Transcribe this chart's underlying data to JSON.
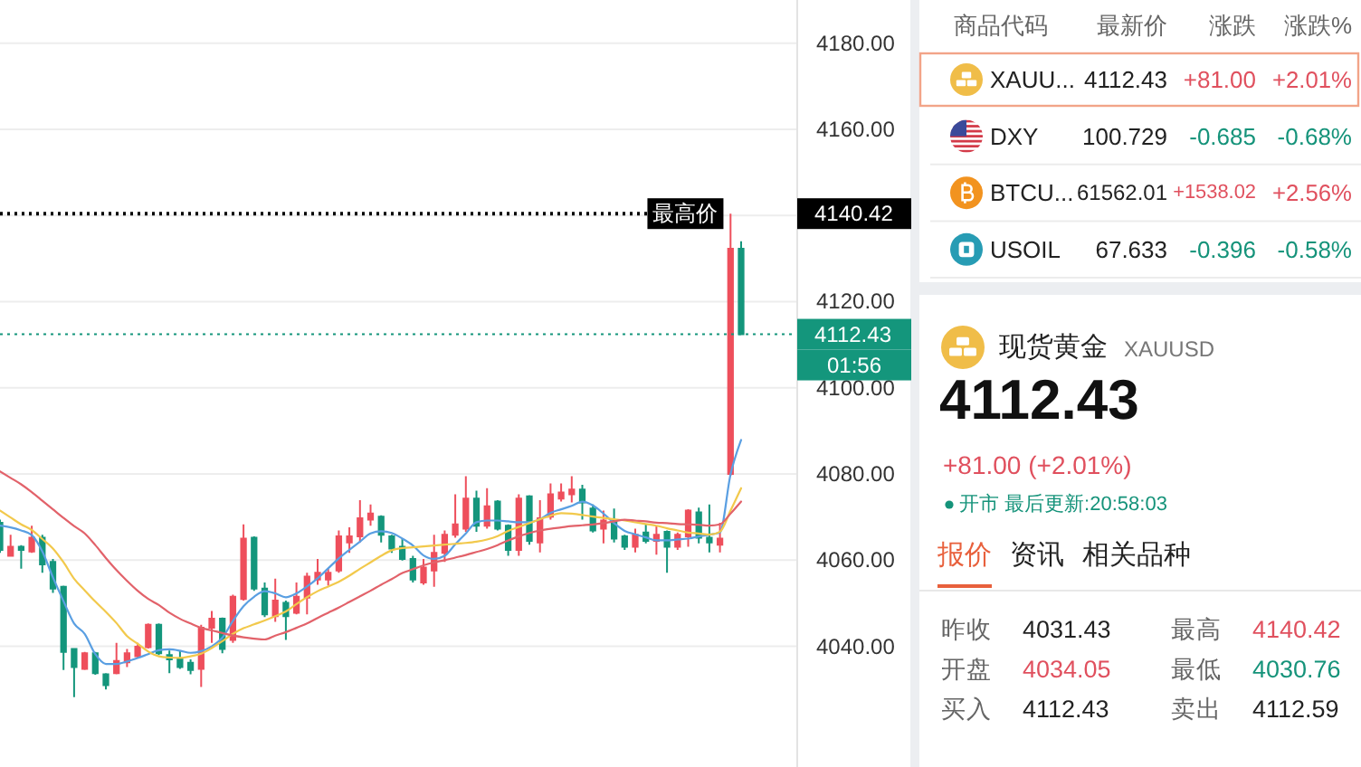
{
  "chart_data": [
    {
      "type": "candlestick",
      "categories": [
        null,
        null,
        null,
        null,
        null,
        null,
        null,
        null,
        null,
        null,
        null,
        null,
        null,
        null,
        null,
        null,
        null,
        null,
        null,
        null,
        null,
        null,
        null,
        null,
        null,
        null,
        null,
        null,
        null,
        null,
        null,
        null,
        null,
        null,
        null,
        null,
        null,
        null,
        null,
        null,
        null,
        null,
        null,
        null,
        null,
        null,
        null,
        null,
        null,
        null,
        null,
        null,
        null,
        null,
        null,
        null,
        null,
        null,
        null,
        null,
        null,
        null,
        null,
        null,
        null,
        null,
        null,
        null,
        null,
        null,
        null
      ],
      "ohlc": [
        [
          4068.7,
          4069.4,
          4061.7,
          4062.4
        ],
        [
          4061.0,
          4065.9,
          4061.0,
          4063.1
        ],
        [
          4063.1,
          4063.5,
          4058.0,
          4062.4
        ],
        [
          4062.0,
          4068.0,
          4061.7,
          4065.2
        ],
        [
          4065.2,
          4065.9,
          4057.1,
          4059.0
        ],
        [
          4059.6,
          4060.3,
          4052.4,
          4053.4
        ],
        [
          4053.8,
          4054.1,
          4034.5,
          4038.7
        ],
        [
          4039.4,
          4039.4,
          4028.2,
          4035.2
        ],
        [
          4034.8,
          4038.7,
          4034.5,
          4038.4
        ],
        [
          4038.4,
          4038.7,
          4033.4,
          4033.8
        ],
        [
          4033.5,
          4033.8,
          4030.0,
          4031.0
        ],
        [
          4033.8,
          4040.8,
          4033.5,
          4036.6
        ],
        [
          4036.3,
          4039.4,
          4035.2,
          4038.4
        ],
        [
          4037.7,
          4040.8,
          4037.3,
          4039.9
        ],
        [
          4039.8,
          4045.3,
          4039.5,
          4045.0
        ],
        [
          4045.0,
          4045.3,
          4038.0,
          4038.4
        ],
        [
          4038.0,
          4039.0,
          4033.8,
          4037.0
        ],
        [
          4037.0,
          4039.0,
          4034.8,
          4035.2
        ],
        [
          4036.2,
          4037.0,
          4033.5,
          4034.5
        ],
        [
          4034.8,
          4045.0,
          4030.6,
          4044.3
        ],
        [
          4044.3,
          4048.2,
          4040.8,
          4046.4
        ],
        [
          4046.4,
          4046.7,
          4038.4,
          4039.4
        ],
        [
          4041.5,
          4052.0,
          4040.8,
          4051.5
        ],
        [
          4051.0,
          4068.3,
          4050.6,
          4065.0
        ],
        [
          4065.2,
          4065.5,
          4052.9,
          4053.4
        ],
        [
          4053.4,
          4054.8,
          4046.8,
          4047.4
        ],
        [
          4047.0,
          4055.7,
          4045.7,
          4050.6
        ],
        [
          4050.1,
          4050.6,
          4041.5,
          4047.0
        ],
        [
          4047.8,
          4054.8,
          4047.4,
          4051.5
        ],
        [
          4051.3,
          4057.1,
          4047.4,
          4056.2
        ],
        [
          4055.5,
          4060.3,
          4054.3,
          4057.1
        ],
        [
          4055.5,
          4058.0,
          4054.1,
          4057.1
        ],
        [
          4057.6,
          4066.9,
          4057.1,
          4065.5
        ],
        [
          4064.1,
          4067.6,
          4061.7,
          4065.5
        ],
        [
          4065.5,
          4073.9,
          4064.1,
          4069.7
        ],
        [
          4069.4,
          4072.9,
          4068.0,
          4070.8
        ],
        [
          4070.1,
          4070.4,
          4064.1,
          4065.9
        ],
        [
          4065.5,
          4065.9,
          4061.7,
          4062.7
        ],
        [
          4063.1,
          4065.0,
          4059.9,
          4060.3
        ],
        [
          4060.3,
          4061.0,
          4054.8,
          4055.5
        ],
        [
          4054.8,
          4060.3,
          4054.3,
          4058.3
        ],
        [
          4057.6,
          4065.9,
          4053.8,
          4061.7
        ],
        [
          4061.7,
          4066.9,
          4059.6,
          4065.9
        ],
        [
          4065.9,
          4075.3,
          4065.2,
          4068.3
        ],
        [
          4067.3,
          4079.5,
          4066.6,
          4074.3
        ],
        [
          4074.3,
          4076.1,
          4066.6,
          4068.0
        ],
        [
          4068.0,
          4076.7,
          4067.3,
          4072.5
        ],
        [
          4073.6,
          4073.9,
          4066.9,
          4067.3
        ],
        [
          4068.0,
          4068.3,
          4061.0,
          4062.4
        ],
        [
          4062.4,
          4075.3,
          4061.0,
          4074.3
        ],
        [
          4074.8,
          4075.1,
          4063.6,
          4064.5
        ],
        [
          4064.1,
          4073.9,
          4061.8,
          4069.7
        ],
        [
          4070.1,
          4077.8,
          4069.4,
          4075.3
        ],
        [
          4074.3,
          4077.8,
          4073.6,
          4075.7
        ],
        [
          4075.3,
          4079.5,
          4073.4,
          4076.4
        ],
        [
          4076.4,
          4077.5,
          4069.4,
          4073.4
        ],
        [
          4072.0,
          4072.9,
          4066.4,
          4066.9
        ],
        [
          4067.3,
          4071.5,
          4063.9,
          4069.2
        ],
        [
          4069.2,
          4072.0,
          4064.1,
          4065.0
        ],
        [
          4065.5,
          4065.9,
          4062.4,
          4063.1
        ],
        [
          4063.1,
          4067.3,
          4061.8,
          4065.9
        ],
        [
          4066.4,
          4068.3,
          4063.9,
          4064.5
        ],
        [
          4064.5,
          4068.0,
          4061.3,
          4065.9
        ],
        [
          4066.6,
          4066.9,
          4057.1,
          4063.1
        ],
        [
          4063.1,
          4066.4,
          4062.4,
          4065.9
        ],
        [
          4065.5,
          4071.8,
          4063.1,
          4071.5
        ],
        [
          4071.1,
          4072.2,
          4063.9,
          4065.2
        ],
        [
          4065.2,
          4072.9,
          4061.8,
          4064.1
        ],
        [
          4063.6,
          4068.7,
          4061.8,
          4065.0
        ],
        [
          4080.0,
          4140.42,
          4079.6,
          4132.3
        ],
        [
          4132.3,
          4134.0,
          4112.43,
          4112.43
        ]
      ],
      "series": [
        {
          "type": "line",
          "color": "#5a9fe2",
          "values": [
            4068.0,
            4067.6,
            4066.9,
            4065.8,
            4062.0,
            4056.0,
            4050.5,
            4045.3,
            4042.9,
            4038.2,
            4035.9,
            4035.9,
            4036.5,
            4037.3,
            4038.2,
            4039.1,
            4039.3,
            4039.0,
            4038.5,
            4038.9,
            4040.0,
            4042.0,
            4045.9,
            4049.3,
            4051.5,
            4052.8,
            4052.3,
            4051.4,
            4052.3,
            4053.9,
            4055.8,
            4058.1,
            4060.4,
            4062.4,
            4064.3,
            4066.2,
            4066.7,
            4066.3,
            4065.0,
            4063.4,
            4061.1,
            4060.3,
            4061.0,
            4063.7,
            4066.2,
            4068.8,
            4069.2,
            4069.2,
            4069.0,
            4068.8,
            4068.8,
            4069.5,
            4071.0,
            4071.8,
            4072.6,
            4073.6,
            4072.7,
            4070.8,
            4068.6,
            4066.8,
            4066.0,
            4065.3,
            4064.6,
            4064.6,
            4064.8,
            4065.0,
            4065.5,
            4065.9,
            4066.4,
            4079.9,
            4087.9
          ]
        },
        {
          "type": "line",
          "color": "#f2c94c",
          "values": [
            4071.5,
            4069.9,
            4068.3,
            4067.0,
            4064.9,
            4062.7,
            4059.5,
            4055.7,
            4053.0,
            4050.4,
            4048.0,
            4045.4,
            4042.4,
            4040.6,
            4038.8,
            4037.7,
            4037.4,
            4037.3,
            4037.7,
            4038.3,
            4039.6,
            4041.2,
            4042.9,
            4044.2,
            4045.1,
            4046.0,
            4047.0,
            4048.1,
            4049.8,
            4051.4,
            4052.8,
            4053.9,
            4055.0,
            4056.4,
            4058.0,
            4059.5,
            4061.0,
            4062.3,
            4062.8,
            4063.0,
            4063.2,
            4063.4,
            4063.6,
            4063.8,
            4064.0,
            4064.3,
            4064.8,
            4065.6,
            4066.8,
            4067.7,
            4068.6,
            4069.5,
            4070.3,
            4070.9,
            4070.8,
            4070.5,
            4070.1,
            4069.8,
            4069.5,
            4069.2,
            4068.8,
            4068.4,
            4068.0,
            4067.4,
            4066.9,
            4066.4,
            4066.2,
            4065.9,
            4066.6,
            4071.5,
            4076.7
          ]
        },
        {
          "type": "line",
          "color": "#e2626a",
          "values": [
            4080.6,
            4079.1,
            4077.6,
            4075.8,
            4073.8,
            4071.8,
            4069.8,
            4067.9,
            4066.2,
            4063.5,
            4060.5,
            4057.7,
            4055.2,
            4052.9,
            4051.0,
            4049.6,
            4047.8,
            4046.4,
            4045.3,
            4044.3,
            4043.7,
            4043.1,
            4042.5,
            4042.1,
            4041.8,
            4041.6,
            4042.5,
            4043.3,
            4044.3,
            4045.3,
            4046.6,
            4047.8,
            4049.0,
            4050.3,
            4051.6,
            4052.9,
            4054.3,
            4055.6,
            4057.0,
            4057.9,
            4058.8,
            4059.5,
            4060.0,
            4060.6,
            4061.2,
            4061.9,
            4062.6,
            4063.5,
            4064.6,
            4065.5,
            4066.3,
            4066.9,
            4067.3,
            4067.6,
            4067.9,
            4068.1,
            4068.3,
            4068.6,
            4069.0,
            4069.4,
            4069.2,
            4069.0,
            4068.7,
            4068.6,
            4068.4,
            4068.3,
            4068.2,
            4068.0,
            4068.3,
            4070.8,
            4073.6
          ]
        }
      ],
      "ylim": [
        4012,
        4190
      ],
      "yticks": [
        {
          "value": 4040,
          "label": "4040.00"
        },
        {
          "value": 4060,
          "label": "4060.00"
        },
        {
          "value": 4080,
          "label": "4080.00"
        },
        {
          "value": 4100,
          "label": "4100.00"
        },
        {
          "value": 4120,
          "label": "4120.00"
        },
        {
          "value": 4140,
          "label": null
        },
        {
          "value": 4160,
          "label": "4160.00"
        },
        {
          "value": 4180,
          "label": "4180.00"
        }
      ],
      "grid": "y",
      "ref_lines": [
        {
          "axis": "y",
          "value": 4140.42,
          "label": "最高价",
          "color": "#000000",
          "line_style": "dotted"
        },
        {
          "axis": "y",
          "value": 4112.43,
          "color": "#14967c",
          "line_style": "dotted"
        }
      ],
      "annotations": [
        "01:56"
      ]
    },
    {
      "type": "other",
      "annotations": [
        "商品代码",
        "最新价",
        "涨跌",
        "涨跌%",
        "XAUU...",
        "4112.43",
        "+81.00",
        "+2.01%",
        "DXY",
        "100.729",
        "-0.685",
        "-0.68%",
        "BTCU...",
        "61562.01",
        "+1538.02",
        "+2.56%",
        "USOIL",
        "67.633",
        "-0.396",
        "-0.58%"
      ],
      "colors": [
        "#666666",
        "#666666",
        "#666666",
        "#666666",
        "#222222",
        "#222222",
        "#e0505e",
        "#e0505e",
        "#222222",
        "#222222",
        "#15937a",
        "#15937a",
        "#222222",
        "#222222",
        "#e0505e",
        "#e0505e",
        "#222222",
        "#222222",
        "#15937a",
        "#15937a"
      ]
    },
    {
      "type": "other",
      "title": "现货黄金",
      "subtitle": "XAUUSD",
      "annotations": [
        "4112.43",
        "+81.00 (+2.01%)",
        "开市 最后更新:20:58:03",
        "报价",
        "资讯",
        "相关品种",
        "昨收",
        "4031.43",
        "最高",
        "4140.42",
        "开盘",
        "4034.05",
        "最低",
        "4030.76",
        "买入",
        "4112.43",
        "卖出",
        "4112.59"
      ],
      "colors": [
        "#111111",
        "#e0505e",
        "#15937a",
        "#e8603c",
        "#222222",
        "#222222",
        "#666666",
        "#222222",
        "#666666",
        "#e0505e",
        "#666666",
        "#e0505e",
        "#666666",
        "#15937a",
        "#666666",
        "#222222",
        "#666666",
        "#222222"
      ]
    }
  ]
}
